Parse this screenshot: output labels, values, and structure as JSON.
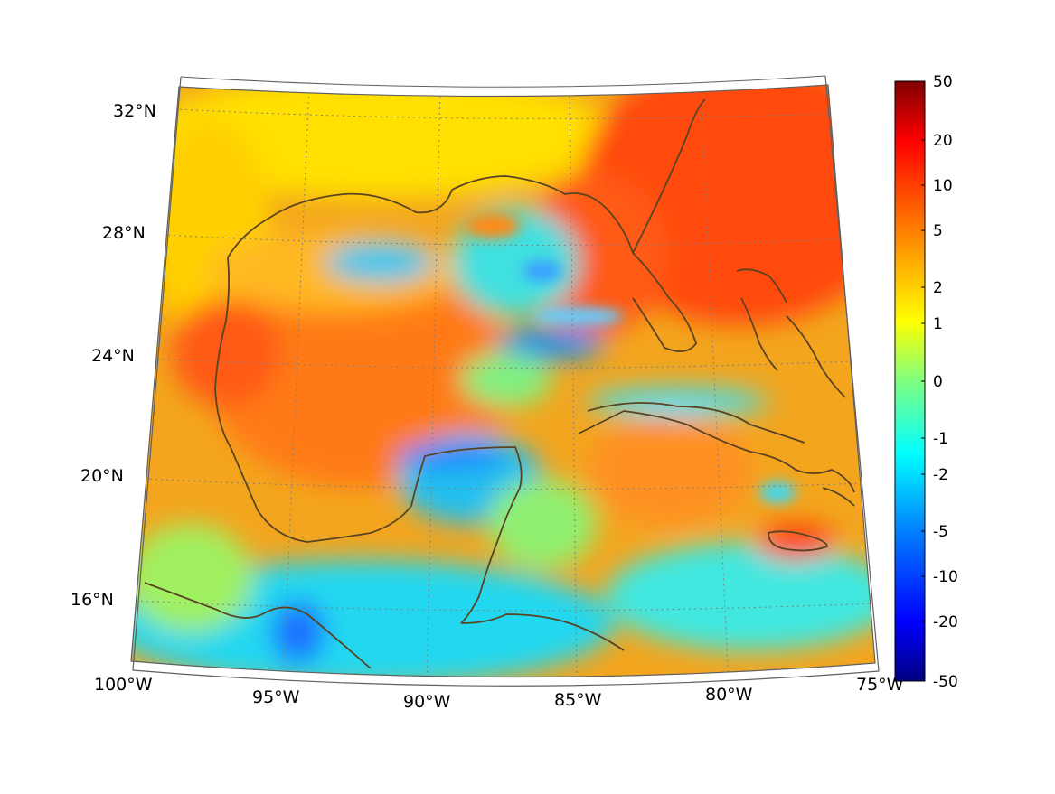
{
  "map": {
    "lon_labels": [
      "100°W",
      "95°W",
      "90°W",
      "85°W",
      "80°W",
      "75°W"
    ],
    "lat_labels": [
      "16°N",
      "20°N",
      "24°N",
      "28°N",
      "32°N"
    ],
    "coastline_color": "#5a4322",
    "grid_color": "#808080"
  },
  "colorbar": {
    "tick_labels": [
      "50",
      "20",
      "10",
      "5",
      "2",
      "1",
      "0",
      "-1",
      "-2",
      "-5",
      "-10",
      "-20",
      "-50"
    ],
    "colors": [
      "#800000",
      "#ff0000",
      "#ff8000",
      "#ffff00",
      "#80ff80",
      "#00ffff",
      "#0080ff",
      "#0000ff",
      "#000080"
    ]
  }
}
